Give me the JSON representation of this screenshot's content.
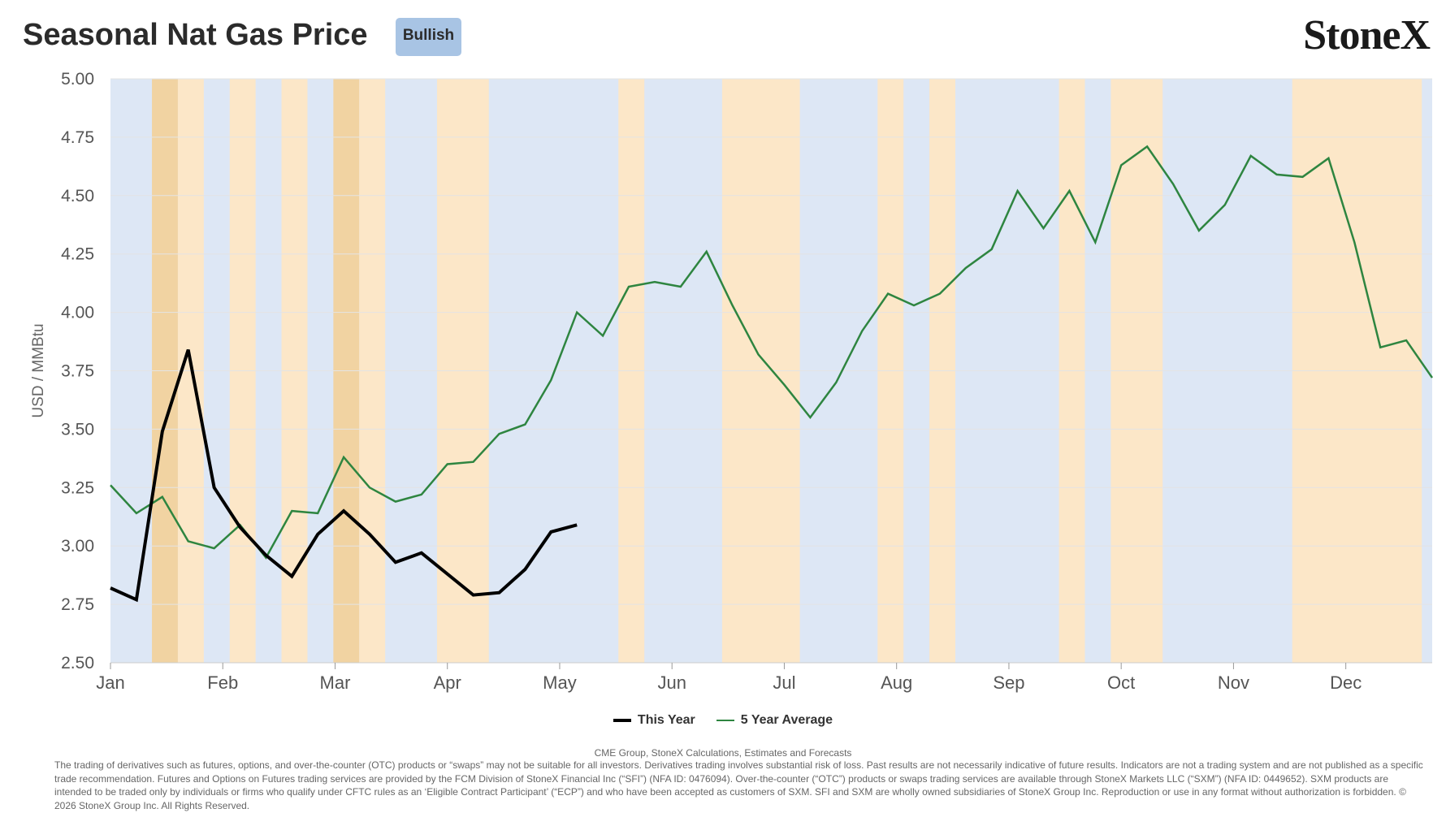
{
  "header": {
    "title": "Seasonal Nat Gas Price",
    "badge": "Bullish",
    "logo": "StoneX"
  },
  "chart_data": {
    "type": "line",
    "ylabel": "USD / MMBtu",
    "ylim": [
      2.5,
      5.0
    ],
    "yticks": [
      "5.00",
      "4.75",
      "4.50",
      "4.25",
      "4.00",
      "3.75",
      "3.50",
      "3.25",
      "3.00",
      "2.75",
      "2.50"
    ],
    "x_ticks": [
      "Jan",
      "Feb",
      "Mar",
      "Apr",
      "May",
      "Jun",
      "Jul",
      "Aug",
      "Sep",
      "Oct",
      "Nov",
      "Dec"
    ],
    "x_unit": "week of year",
    "xlim": [
      0,
      51
    ],
    "background_colors": {
      "base": "#dde7f5",
      "light": "#fce7c8",
      "dark": "#f1d3a2"
    },
    "shaded_weeks": [
      {
        "from": 1.6,
        "to": 2.6,
        "tone": "dark"
      },
      {
        "from": 2.6,
        "to": 3.6,
        "tone": "light"
      },
      {
        "from": 4.6,
        "to": 5.6,
        "tone": "light"
      },
      {
        "from": 6.6,
        "to": 7.6,
        "tone": "light"
      },
      {
        "from": 8.6,
        "to": 9.6,
        "tone": "dark"
      },
      {
        "from": 9.6,
        "to": 10.6,
        "tone": "light"
      },
      {
        "from": 12.6,
        "to": 14.6,
        "tone": "light"
      },
      {
        "from": 19.6,
        "to": 20.6,
        "tone": "light"
      },
      {
        "from": 23.6,
        "to": 26.6,
        "tone": "light"
      },
      {
        "from": 29.6,
        "to": 30.6,
        "tone": "light"
      },
      {
        "from": 31.6,
        "to": 32.6,
        "tone": "light"
      },
      {
        "from": 36.6,
        "to": 37.6,
        "tone": "light"
      },
      {
        "from": 38.6,
        "to": 40.6,
        "tone": "light"
      },
      {
        "from": 45.6,
        "to": 50.6,
        "tone": "light"
      }
    ],
    "series": [
      {
        "name": "This Year",
        "color": "#000000",
        "values": [
          2.82,
          2.77,
          3.49,
          3.84,
          3.25,
          3.08,
          2.96,
          2.87,
          3.05,
          3.15,
          3.05,
          2.93,
          2.97,
          2.88,
          2.79,
          2.8,
          2.9,
          3.06,
          3.09
        ]
      },
      {
        "name": "5 Year Average",
        "color": "#2e8540",
        "values": [
          3.26,
          3.14,
          3.21,
          3.02,
          2.99,
          3.09,
          2.95,
          3.15,
          3.14,
          3.38,
          3.25,
          3.19,
          3.22,
          3.35,
          3.36,
          3.48,
          3.52,
          3.71,
          4.0,
          3.9,
          4.11,
          4.13,
          4.11,
          4.26,
          4.03,
          3.82,
          3.69,
          3.55,
          3.7,
          3.92,
          4.08,
          4.03,
          4.08,
          4.19,
          4.27,
          4.52,
          4.36,
          4.52,
          4.3,
          4.63,
          4.71,
          4.55,
          4.35,
          4.46,
          4.67,
          4.59,
          4.58,
          4.66,
          4.3,
          3.85,
          3.88,
          3.72
        ]
      }
    ],
    "legend_position": "bottom"
  },
  "footer": {
    "source": "CME Group, StoneX Calculations, Estimates and Forecasts",
    "disclaimer": "The trading of derivatives such as futures, options, and over-the-counter (OTC) products or “swaps” may not be suitable for all investors. Derivatives trading involves substantial risk of loss. Past results are not necessarily indicative of future results. Indicators are not a trading system and are not published as a specific trade recommendation. Futures and Options on Futures trading services are provided by the FCM Division of StoneX Financial Inc (“SFI”) (NFA ID: 0476094). Over-the-counter (“OTC”) products or swaps trading services are available through StoneX Markets LLC (“SXM”) (NFA ID: 0449652). SXM products are intended to be traded only by individuals or firms who qualify under CFTC rules as an ‘Eligible Contract Participant’ (“ECP”) and who have been accepted as customers of SXM. SFI and SXM are wholly owned subsidiaries of StoneX Group Inc. Reproduction or use in any format without authorization is forbidden. © 2026 StoneX Group Inc. All Rights Reserved."
  }
}
